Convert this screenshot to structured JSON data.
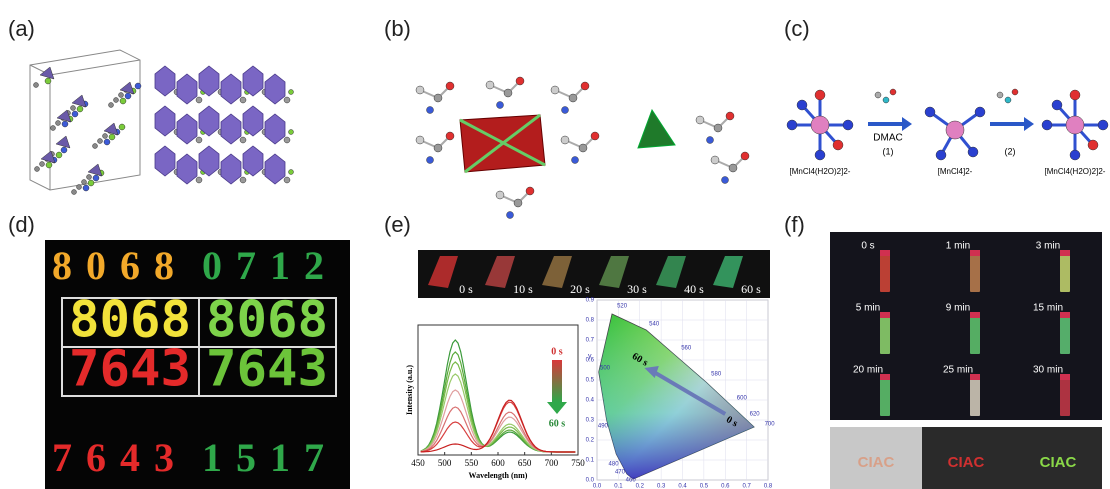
{
  "a": {
    "label": "(a)"
  },
  "b": {
    "label": "(b)"
  },
  "c": {
    "label": "(c)",
    "reagent": "DMAC",
    "steps": [
      "(1)",
      "(2)"
    ],
    "species": [
      "[MnCl4(H2O)2]2-",
      "[MnCl4]2-",
      "[MnCl4(H2O)2]2-"
    ]
  },
  "d": {
    "label": "(d)",
    "top_row": [
      "8068",
      "0712"
    ],
    "display_rows": [
      [
        "8068",
        "8068"
      ],
      [
        "7643",
        "7643"
      ]
    ],
    "bottom_row": [
      "7643",
      "1517"
    ]
  },
  "e": {
    "label": "(e)",
    "strip_times": [
      "0 s",
      "10 s",
      "20 s",
      "30 s",
      "40 s",
      "60 s"
    ],
    "spectrum": {
      "x_label": "Wavelength (nm)",
      "y_label": "Intensity (a.u.)",
      "x_ticks": [
        "450",
        "500",
        "550",
        "600",
        "650",
        "700",
        "750"
      ],
      "legend_start": "0 s",
      "legend_end": "60 s"
    },
    "cie": {
      "y_label": "y",
      "x_ticks": [
        "0.0",
        "0.1",
        "0.2",
        "0.3",
        "0.4",
        "0.5",
        "0.6",
        "0.7",
        "0.8"
      ],
      "y_ticks": [
        "0.0",
        "0.1",
        "0.2",
        "0.3",
        "0.4",
        "0.5",
        "0.6",
        "0.7",
        "0.8",
        "0.9"
      ],
      "wavelengths": [
        "520",
        "540",
        "560",
        "580",
        "600",
        "620",
        "700",
        "500",
        "490",
        "480",
        "470",
        "460"
      ],
      "start": "0 s",
      "end": "60 s"
    }
  },
  "f": {
    "label": "(f)",
    "times": [
      "0 s",
      "1 min",
      "3 min",
      "5 min",
      "9 min",
      "15 min",
      "20 min",
      "25 min",
      "30 min"
    ],
    "signs": [
      "CIAC",
      "CIAC",
      "CIAC"
    ]
  }
}
